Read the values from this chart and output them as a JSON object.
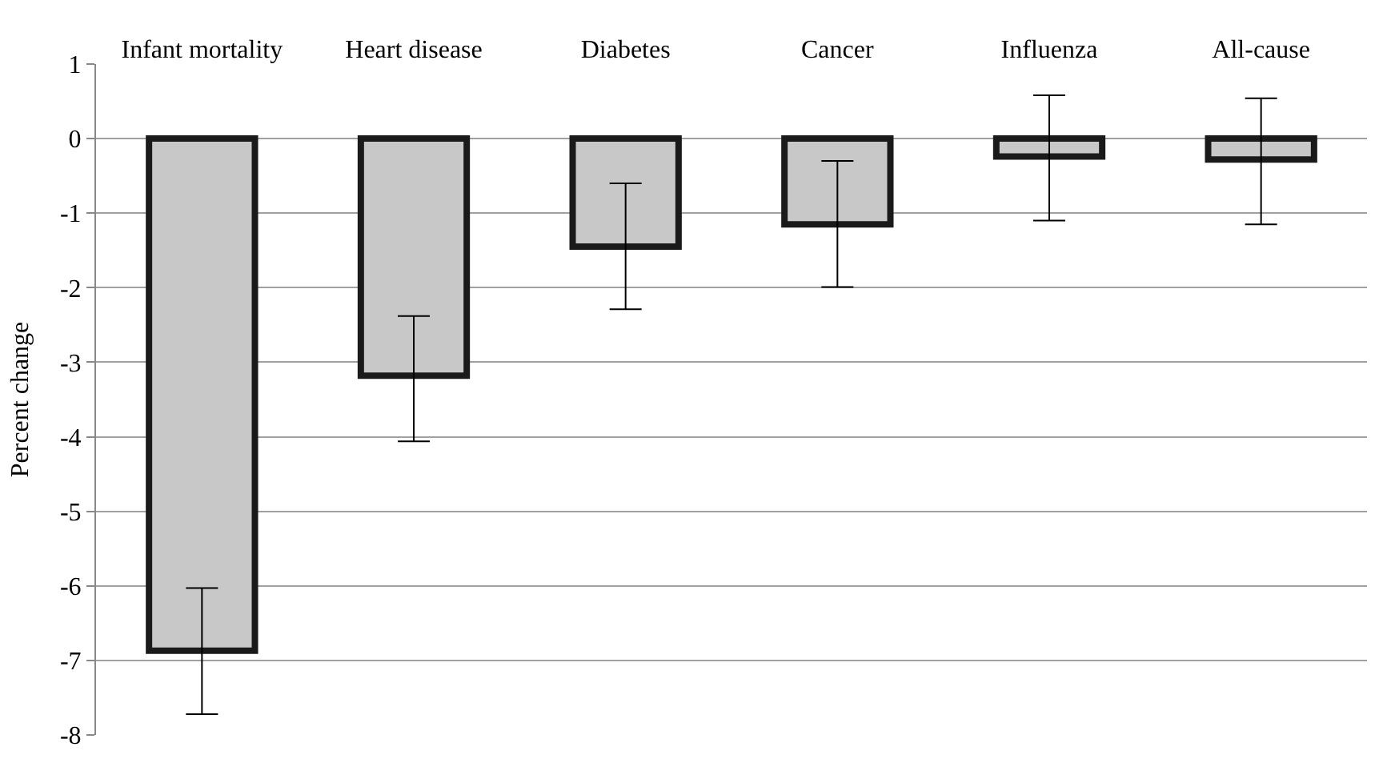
{
  "chart_data": {
    "type": "bar",
    "ylabel": "Percent change",
    "categories": [
      "Infant mortality",
      "Heart disease",
      "Diabetes",
      "Cancer",
      "Influenza",
      "All-cause"
    ],
    "values": [
      -6.87,
      -3.18,
      -1.45,
      -1.15,
      -0.24,
      -0.28
    ],
    "errors": [
      [
        -7.72,
        -6.03
      ],
      [
        -4.06,
        -2.38
      ],
      [
        -2.29,
        -0.6
      ],
      [
        -1.99,
        -0.3
      ],
      [
        -1.1,
        0.58
      ],
      [
        -1.15,
        0.54
      ]
    ],
    "color": "#c8c8c8",
    "ylim": [
      -8,
      1
    ],
    "yticks": [
      -8,
      -7,
      -6,
      -5,
      -4,
      -3,
      -2,
      -1,
      0,
      1
    ],
    "grid": "y"
  }
}
